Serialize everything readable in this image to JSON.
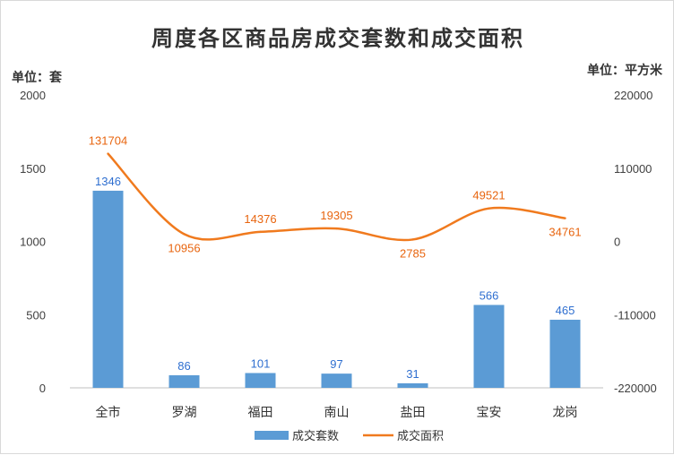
{
  "chart_data": {
    "type": "bar",
    "title": "周度各区商品房成交套数和成交面积",
    "unit_left": "单位：套",
    "unit_right": "单位：平方米",
    "categories": [
      "全市",
      "罗湖",
      "福田",
      "南山",
      "盐田",
      "宝安",
      "龙岗"
    ],
    "series": [
      {
        "name": "成交套数",
        "type": "bar",
        "axis": "left",
        "color": "#5b9bd5",
        "values": [
          1346,
          86,
          101,
          97,
          31,
          566,
          465
        ]
      },
      {
        "name": "成交面积",
        "type": "line",
        "axis": "right",
        "color": "#f07a1e",
        "values": [
          131704,
          10956,
          14376,
          19305,
          2785,
          49521,
          34761
        ]
      }
    ],
    "y_left": {
      "min": 0,
      "max": 2000,
      "ticks": [
        0,
        500,
        1000,
        1500,
        2000
      ]
    },
    "y_right": {
      "min": -220000,
      "max": 220000,
      "ticks": [
        -220000,
        -110000,
        0,
        110000,
        220000
      ]
    },
    "legend_position": "bottom",
    "grid": false
  }
}
